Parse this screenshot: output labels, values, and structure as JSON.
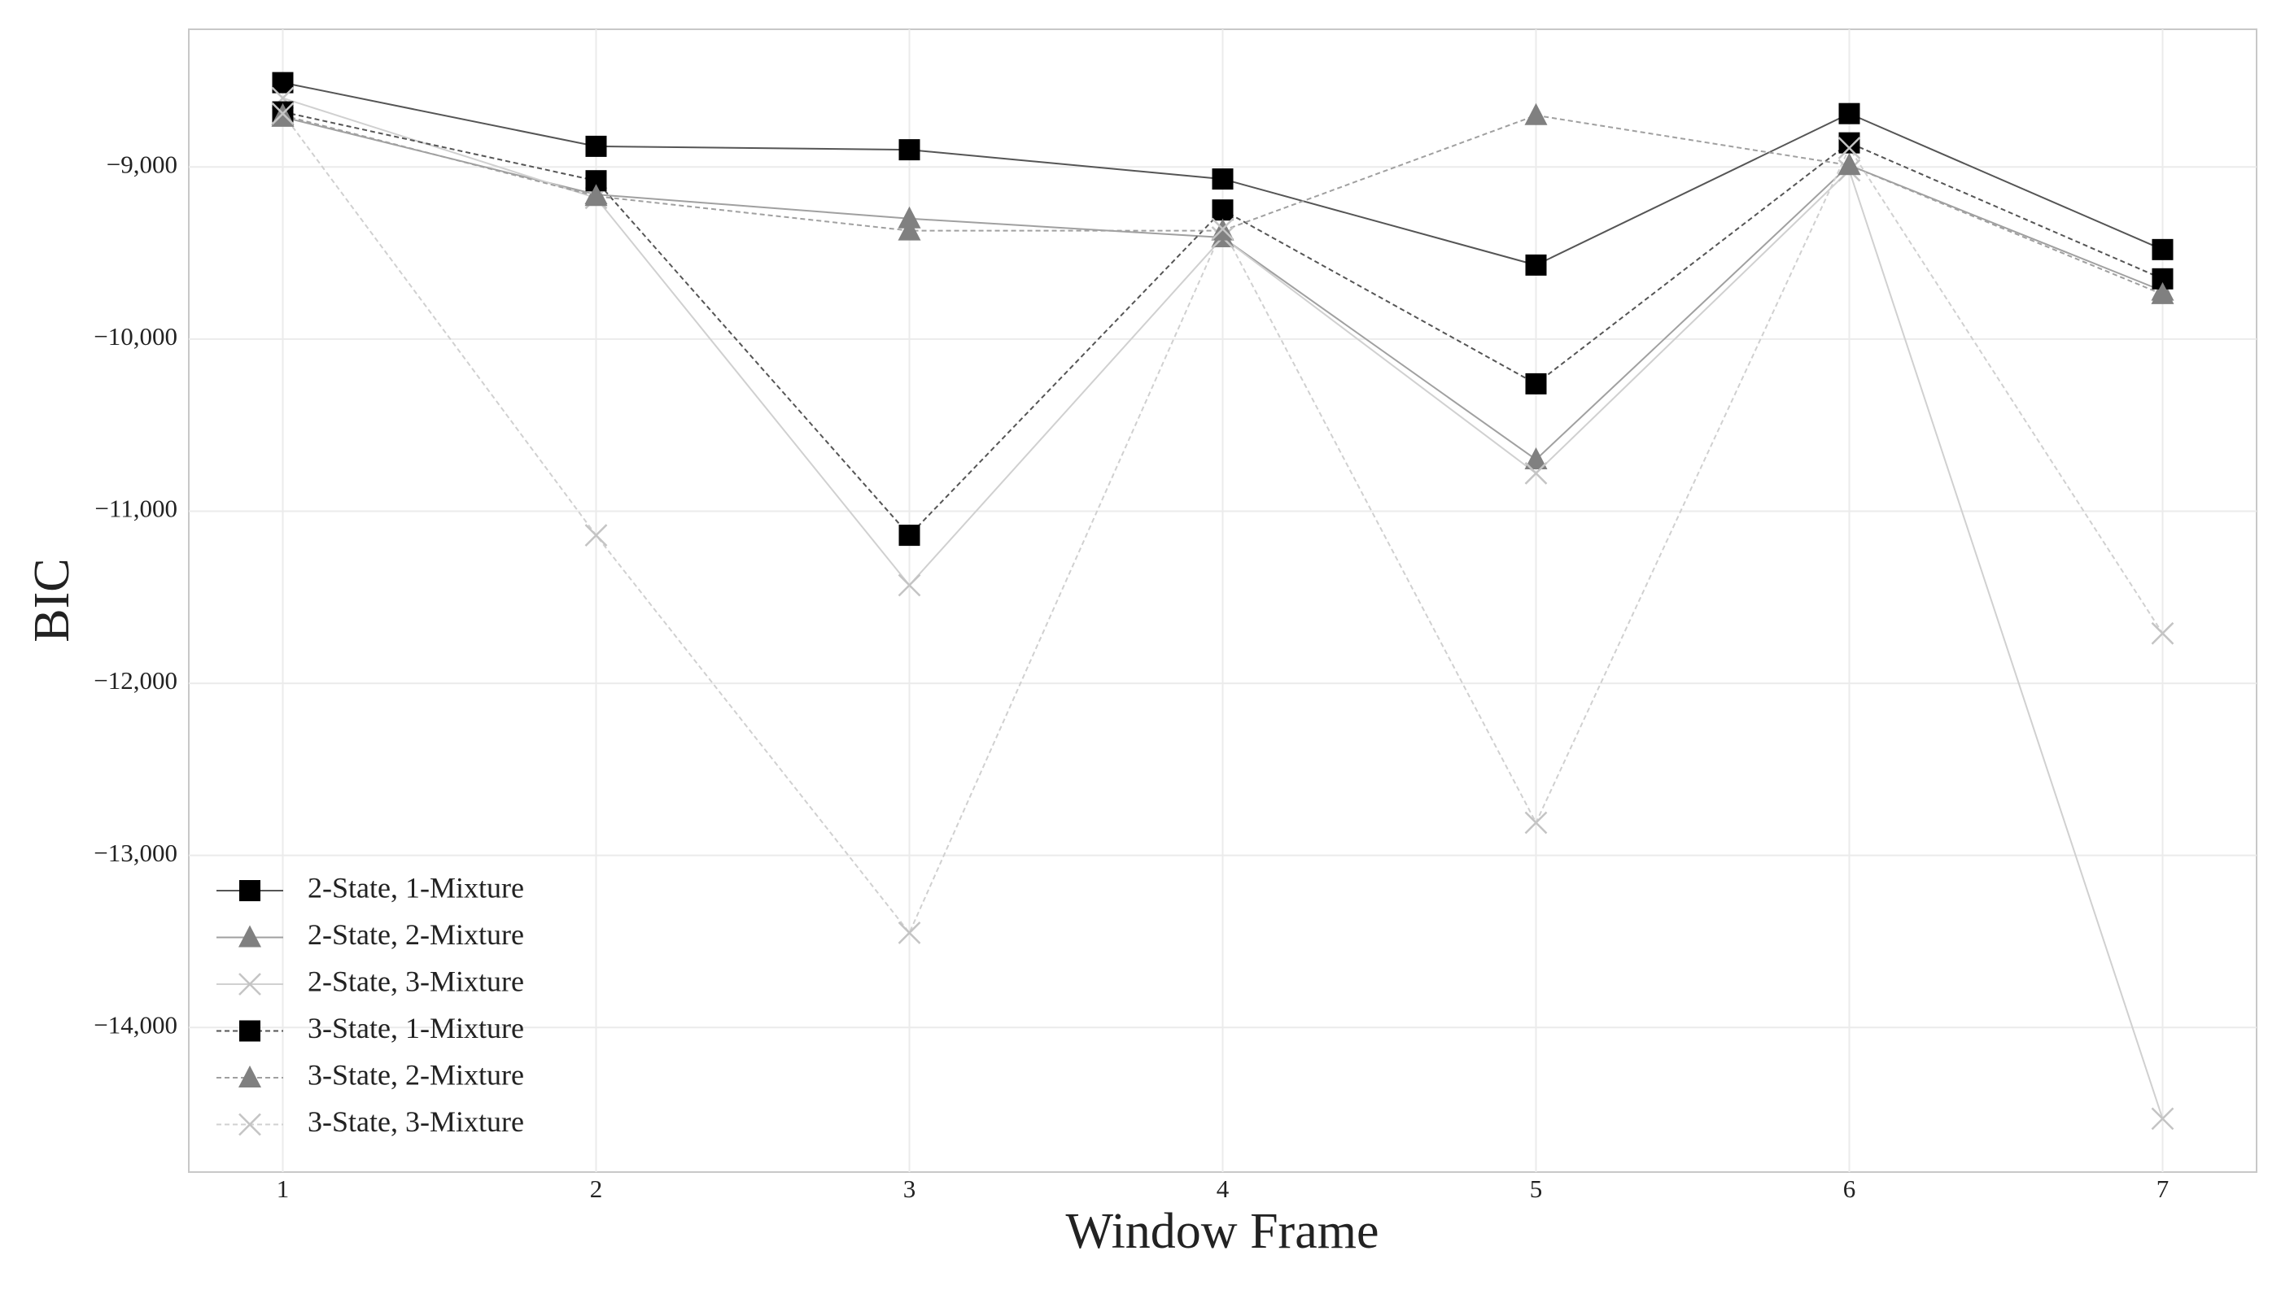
{
  "chart_data": {
    "type": "line",
    "x_label": "Window Frame",
    "y_label": "BIC",
    "x": [
      1,
      2,
      3,
      4,
      5,
      6,
      7
    ],
    "xlim": [
      0.7,
      7.3
    ],
    "xticks": [
      1,
      2,
      3,
      4,
      5,
      6,
      7
    ],
    "ylim": [
      -14840,
      -8200
    ],
    "yticks": [
      {
        "value": -9000,
        "label": "−9,000"
      },
      {
        "value": -10000,
        "label": "−10,000"
      },
      {
        "value": -11000,
        "label": "−11,000"
      },
      {
        "value": -12000,
        "label": "−12,000"
      },
      {
        "value": -13000,
        "label": "−13,000"
      },
      {
        "value": -14000,
        "label": "−14,000"
      }
    ],
    "grid": true,
    "legend_position": "lower-left",
    "series": [
      {
        "name": "2-State, 1-Mixture",
        "color": "#000000",
        "line_color": "#555555",
        "dash": "solid",
        "marker": "square",
        "values": [
          -8510,
          -8880,
          -8900,
          -9070,
          -9570,
          -8690,
          -9480
        ]
      },
      {
        "name": "2-State, 2-Mixture",
        "color": "#808080",
        "line_color": "#a0a0a0",
        "dash": "solid",
        "marker": "triangle",
        "values": [
          -8710,
          -9160,
          -9300,
          -9410,
          -10700,
          -8990,
          -9720
        ]
      },
      {
        "name": "2-State, 3-Mixture",
        "color": "#c4c4c4",
        "line_color": "#d0d0d0",
        "dash": "solid",
        "marker": "x",
        "values": [
          -8600,
          -9180,
          -11430,
          -9410,
          -10780,
          -9020,
          -14530
        ]
      },
      {
        "name": "3-State, 1-Mixture",
        "color": "#000000",
        "line_color": "#555555",
        "dash": "dashed",
        "marker": "square",
        "values": [
          -8680,
          -9080,
          -11140,
          -9250,
          -10260,
          -8860,
          -9650
        ]
      },
      {
        "name": "3-State, 2-Mixture",
        "color": "#808080",
        "line_color": "#a0a0a0",
        "dash": "dashed",
        "marker": "triangle",
        "values": [
          -8700,
          -9170,
          -9370,
          -9370,
          -8700,
          -8990,
          -9740
        ]
      },
      {
        "name": "3-State, 3-Mixture",
        "color": "#c4c4c4",
        "line_color": "#d0d0d0",
        "dash": "dashed",
        "marker": "x",
        "values": [
          -8690,
          -11140,
          -13450,
          -9360,
          -12810,
          -8890,
          -11710
        ]
      }
    ]
  }
}
